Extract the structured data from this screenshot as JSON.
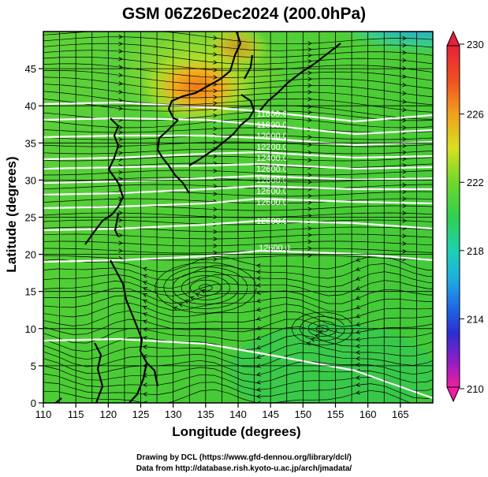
{
  "title": "GSM 06Z26Dec2024 (200.0hPa)",
  "x_axis": {
    "label": "Longitude (degrees)",
    "ticks": [
      "110",
      "115",
      "120",
      "125",
      "130",
      "135",
      "140",
      "145",
      "150",
      "155",
      "160",
      "165"
    ],
    "range": [
      110,
      170
    ]
  },
  "y_axis": {
    "label": "Latitude (degrees)",
    "ticks": [
      "0",
      "5",
      "10",
      "15",
      "20",
      "25",
      "30",
      "35",
      "40",
      "45"
    ],
    "range": [
      0,
      50
    ]
  },
  "colorbar": {
    "labels": [
      "230",
      "226",
      "222",
      "218",
      "214",
      "210"
    ],
    "colors": [
      "#e6203a",
      "#f08a1c",
      "#f5d21e",
      "#b4e022",
      "#3fcf2e",
      "#1fd07a",
      "#1ec8c8",
      "#1e8ee6",
      "#2a3fd8",
      "#6a1ec8",
      "#cc1ec0",
      "#f01ea0"
    ]
  },
  "contour_labels": [
    "11600.0",
    "11800.0",
    "12000.0",
    "12200.0",
    "12400.0",
    "12600.0"
  ],
  "credits": {
    "line1": "Drawing by DCL (https://www.gfd-dennou.org/library/dcl/)",
    "line2": "Data from http://database.rish.kyoto-u.ac.jp/arch/jmadata/"
  }
}
